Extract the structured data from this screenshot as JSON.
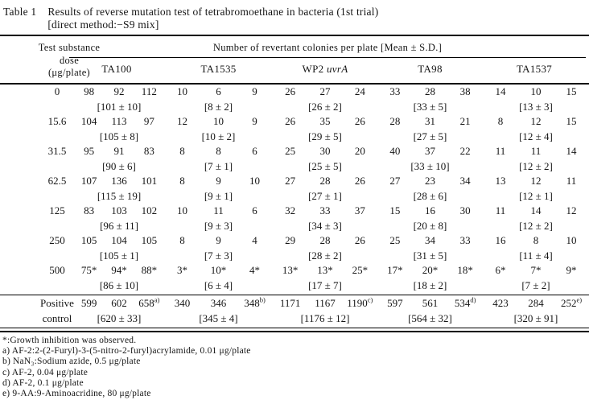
{
  "colors": {
    "text": "#161616",
    "rule": "#000000",
    "background": "#ffffff"
  },
  "title": {
    "label": "Table 1",
    "line1": "Results of reverse mutation test of tetrabromoethane in bacteria (1st trial)",
    "line2": "[direct method:−S9 mix]"
  },
  "table": {
    "dose_header": [
      "Test substance",
      "dose",
      "(μg/plate)"
    ],
    "span_header": "Number of revertant colonies per plate [Mean ± S.D.]",
    "strains": [
      {
        "label": "TA100",
        "italic": ""
      },
      {
        "label": "TA1535",
        "italic": ""
      },
      {
        "label": "WP2",
        "italic": "uvrA"
      },
      {
        "label": "TA98",
        "italic": ""
      },
      {
        "label": "TA1537",
        "italic": ""
      }
    ],
    "rows": [
      {
        "dose": [
          "0"
        ],
        "cells": [
          {
            "values": [
              "98",
              "92",
              "112"
            ],
            "mean": "[101 ± 10]"
          },
          {
            "values": [
              "10",
              "6",
              "9"
            ],
            "mean": "[8 ± 2]"
          },
          {
            "values": [
              "26",
              "27",
              "24"
            ],
            "mean": "[26 ± 2]"
          },
          {
            "values": [
              "33",
              "28",
              "38"
            ],
            "mean": "[33 ± 5]"
          },
          {
            "values": [
              "14",
              "10",
              "15"
            ],
            "mean": "[13 ± 3]"
          }
        ]
      },
      {
        "dose": [
          "15.6"
        ],
        "cells": [
          {
            "values": [
              "104",
              "113",
              "97"
            ],
            "mean": "[105 ± 8]"
          },
          {
            "values": [
              "12",
              "10",
              "9"
            ],
            "mean": "[10 ± 2]"
          },
          {
            "values": [
              "26",
              "35",
              "26"
            ],
            "mean": "[29 ± 5]"
          },
          {
            "values": [
              "28",
              "31",
              "21"
            ],
            "mean": "[27 ± 5]"
          },
          {
            "values": [
              "8",
              "12",
              "15"
            ],
            "mean": "[12 ± 4]"
          }
        ]
      },
      {
        "dose": [
          "31.5"
        ],
        "cells": [
          {
            "values": [
              "95",
              "91",
              "83"
            ],
            "mean": "[90 ± 6]"
          },
          {
            "values": [
              "8",
              "8",
              "6"
            ],
            "mean": "[7 ± 1]"
          },
          {
            "values": [
              "25",
              "30",
              "20"
            ],
            "mean": "[25 ± 5]"
          },
          {
            "values": [
              "40",
              "37",
              "22"
            ],
            "mean": "[33 ± 10]"
          },
          {
            "values": [
              "11",
              "11",
              "14"
            ],
            "mean": "[12 ± 2]"
          }
        ]
      },
      {
        "dose": [
          "62.5"
        ],
        "cells": [
          {
            "values": [
              "107",
              "136",
              "101"
            ],
            "mean": "[115 ± 19]"
          },
          {
            "values": [
              "8",
              "9",
              "10"
            ],
            "mean": "[9 ± 1]"
          },
          {
            "values": [
              "27",
              "28",
              "26"
            ],
            "mean": "[27 ± 1]"
          },
          {
            "values": [
              "27",
              "23",
              "34"
            ],
            "mean": "[28 ± 6]"
          },
          {
            "values": [
              "13",
              "12",
              "11"
            ],
            "mean": "[12 ± 1]"
          }
        ]
      },
      {
        "dose": [
          "125"
        ],
        "cells": [
          {
            "values": [
              "83",
              "103",
              "102"
            ],
            "mean": "[96 ± 11]"
          },
          {
            "values": [
              "10",
              "11",
              "6"
            ],
            "mean": "[9 ± 3]"
          },
          {
            "values": [
              "32",
              "33",
              "37"
            ],
            "mean": "[34 ± 3]"
          },
          {
            "values": [
              "15",
              "16",
              "30"
            ],
            "mean": "[20 ± 8]"
          },
          {
            "values": [
              "11",
              "14",
              "12"
            ],
            "mean": "[12 ± 2]"
          }
        ]
      },
      {
        "dose": [
          "250"
        ],
        "cells": [
          {
            "values": [
              "105",
              "104",
              "105"
            ],
            "mean": "[105 ± 1]"
          },
          {
            "values": [
              "8",
              "9",
              "4"
            ],
            "mean": "[7 ± 3]"
          },
          {
            "values": [
              "29",
              "28",
              "26"
            ],
            "mean": "[28 ± 2]"
          },
          {
            "values": [
              "25",
              "34",
              "33"
            ],
            "mean": "[31 ± 5]"
          },
          {
            "values": [
              "16",
              "8",
              "10"
            ],
            "mean": "[11 ± 4]"
          }
        ]
      },
      {
        "dose": [
          "500"
        ],
        "cells": [
          {
            "values": [
              "75*",
              "94*",
              "88*"
            ],
            "mean": "[86 ± 10]"
          },
          {
            "values": [
              "3*",
              "10*",
              "4*"
            ],
            "mean": "[6 ± 4]"
          },
          {
            "values": [
              "13*",
              "13*",
              "25*"
            ],
            "mean": "[17 ± 7]"
          },
          {
            "values": [
              "17*",
              "20*",
              "18*"
            ],
            "mean": "[18 ± 2]"
          },
          {
            "values": [
              "6*",
              "7*",
              "9*"
            ],
            "mean": "[7 ± 2]"
          }
        ]
      },
      {
        "dose": [
          "Positive",
          "control"
        ],
        "separator_above": true,
        "cells": [
          {
            "values": [
              "599",
              "602",
              "658"
            ],
            "sup": "a)",
            "mean": "[620 ± 33]"
          },
          {
            "values": [
              "340",
              "346",
              "348"
            ],
            "sup": "b)",
            "mean": "[345 ± 4]"
          },
          {
            "values": [
              "1171",
              "1167",
              "1190"
            ],
            "sup": "c)",
            "mean": "[1176 ± 12]"
          },
          {
            "values": [
              "597",
              "561",
              "534"
            ],
            "sup": "d)",
            "mean": "[564 ± 32]"
          },
          {
            "values": [
              "423",
              "284",
              "252"
            ],
            "sup": "e)",
            "mean": "[320 ± 91]"
          }
        ]
      }
    ]
  },
  "footnotes": [
    "*:Growth inhibition was observed.",
    "a) AF-2:2-(2-Furyl)-3-(5-nitro-2-furyl)acrylamide, 0.01 μg/plate",
    "b) NaN₃:Sodium azide, 0.5 μg/plate",
    "c) AF-2, 0.04 μg/plate",
    "d) AF-2, 0.1 μg/plate",
    "e) 9-AA:9-Aminoacridine, 80 μg/plate"
  ]
}
